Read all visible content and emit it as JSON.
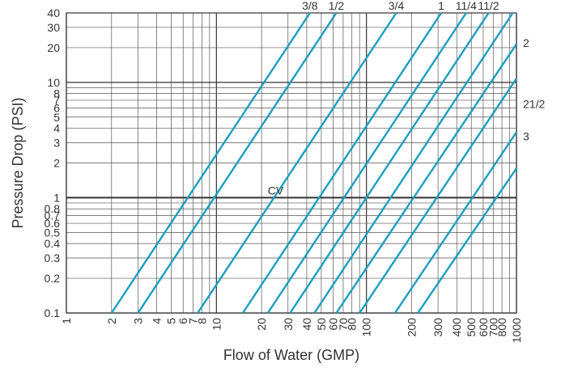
{
  "chart_data": {
    "type": "line",
    "title": "",
    "xlabel": "Flow of Water (GMP)",
    "ylabel": "Pressure Drop (PSI)",
    "x_scale": "log",
    "y_scale": "log",
    "xlim": [
      1,
      1000
    ],
    "ylim": [
      0.1,
      40
    ],
    "grid": true,
    "x_ticks": [
      {
        "v": 1,
        "t": "1"
      },
      {
        "v": 2,
        "t": "2"
      },
      {
        "v": 3,
        "t": "3"
      },
      {
        "v": 4,
        "t": "4"
      },
      {
        "v": 5,
        "t": "5"
      },
      {
        "v": 6,
        "t": "6"
      },
      {
        "v": 7,
        "t": "7"
      },
      {
        "v": 8,
        "t": "8"
      },
      {
        "v": 10,
        "t": "10"
      },
      {
        "v": 20,
        "t": "20"
      },
      {
        "v": 30,
        "t": "30"
      },
      {
        "v": 40,
        "t": "40"
      },
      {
        "v": 50,
        "t": "50"
      },
      {
        "v": 60,
        "t": "60"
      },
      {
        "v": 70,
        "t": "70"
      },
      {
        "v": 80,
        "t": "80"
      },
      {
        "v": 100,
        "t": "100"
      },
      {
        "v": 200,
        "t": "200"
      },
      {
        "v": 300,
        "t": "300"
      },
      {
        "v": 400,
        "t": "400"
      },
      {
        "v": 500,
        "t": "500"
      },
      {
        "v": 600,
        "t": "600"
      },
      {
        "v": 700,
        "t": "700"
      },
      {
        "v": 800,
        "t": "800"
      },
      {
        "v": 1000,
        "t": "1000"
      }
    ],
    "y_ticks": [
      {
        "v": 0.1,
        "t": "0.1"
      },
      {
        "v": 0.2,
        "t": "0.2"
      },
      {
        "v": 0.3,
        "t": "0.3"
      },
      {
        "v": 0.4,
        "t": "0.4"
      },
      {
        "v": 0.5,
        "t": "0.5"
      },
      {
        "v": 0.6,
        "t": "0.6"
      },
      {
        "v": 0.7,
        "t": "0.7"
      },
      {
        "v": 0.8,
        "t": "0.8"
      },
      {
        "v": 1,
        "t": "1"
      },
      {
        "v": 2,
        "t": "2"
      },
      {
        "v": 3,
        "t": "3"
      },
      {
        "v": 4,
        "t": "4"
      },
      {
        "v": 5,
        "t": "5"
      },
      {
        "v": 6,
        "t": "6"
      },
      {
        "v": 7,
        "t": "7"
      },
      {
        "v": 8,
        "t": "8"
      },
      {
        "v": 10,
        "t": "10"
      },
      {
        "v": 20,
        "t": "20"
      },
      {
        "v": 30,
        "t": "30"
      },
      {
        "v": 40,
        "t": "40"
      }
    ],
    "cv_reference": {
      "label": "CV",
      "y": 1
    },
    "series": [
      {
        "name": "3/8",
        "x": [
          2,
          42
        ],
        "y": [
          0.1,
          40
        ]
      },
      {
        "name": "1/2",
        "x": [
          3,
          63
        ],
        "y": [
          0.1,
          40
        ]
      },
      {
        "name": "3/4",
        "x": [
          7.5,
          158
        ],
        "y": [
          0.1,
          40
        ]
      },
      {
        "name": "1",
        "x": [
          15,
          315
        ],
        "y": [
          0.1,
          40
        ]
      },
      {
        "name": "11/4",
        "x": [
          22,
          462
        ],
        "y": [
          0.1,
          40
        ]
      },
      {
        "name": "11/2",
        "x": [
          31,
          651
        ],
        "y": [
          0.1,
          40
        ]
      },
      {
        "name": "",
        "x": [
          45,
          945
        ],
        "y": [
          0.1,
          40
        ]
      },
      {
        "name": "",
        "x": [
          63,
          1000
        ],
        "y": [
          0.1,
          21.5
        ]
      },
      {
        "name": "2",
        "x": [
          90,
          1000
        ],
        "y": [
          0.1,
          10.8
        ]
      },
      {
        "name": "21/2",
        "x": [
          155,
          1000
        ],
        "y": [
          0.1,
          3.7
        ]
      },
      {
        "name": "3",
        "x": [
          220,
          1000
        ],
        "y": [
          0.1,
          1.8
        ]
      }
    ],
    "series_labels": [
      {
        "text": "3/8",
        "side": "top",
        "series": 0
      },
      {
        "text": "1/2",
        "side": "top",
        "series": 1
      },
      {
        "text": "3/4",
        "side": "top",
        "series": 2
      },
      {
        "text": "1",
        "side": "top",
        "series": 3
      },
      {
        "text": "11/4",
        "side": "top",
        "series": 4
      },
      {
        "text": "11/2",
        "side": "top",
        "series": 5
      },
      {
        "text": "2",
        "side": "right",
        "y": 22
      },
      {
        "text": "21/2",
        "side": "right",
        "y": 6.5
      },
      {
        "text": "3",
        "side": "right",
        "y": 3.4
      }
    ],
    "colors": {
      "line": "#1b9ebf",
      "grid": "#555555",
      "major_grid": "#333333",
      "text": "#333333"
    }
  }
}
